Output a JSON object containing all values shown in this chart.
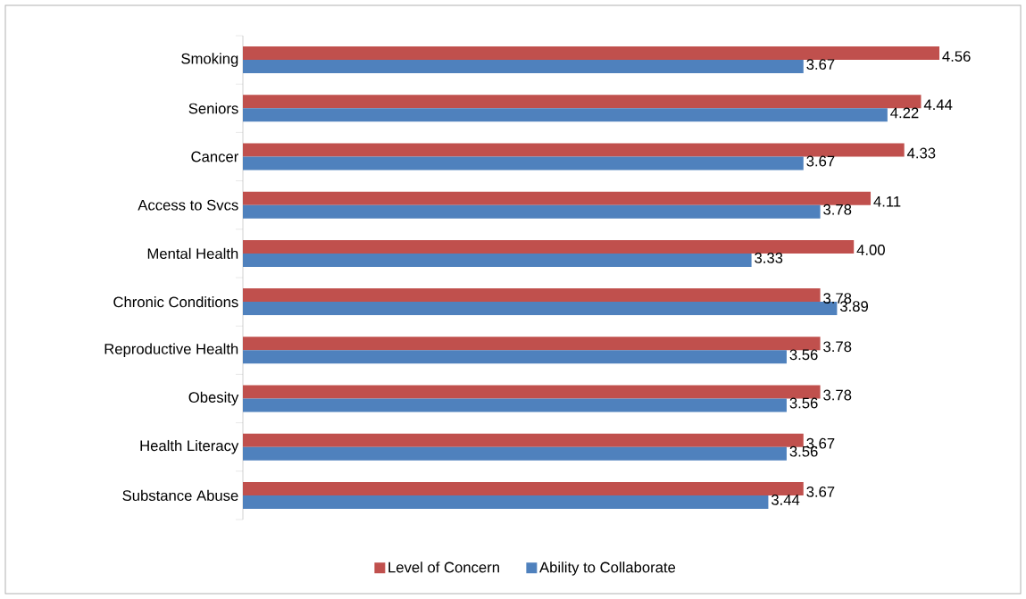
{
  "chart_data": {
    "type": "bar",
    "orientation": "horizontal",
    "categories": [
      "Smoking",
      "Seniors",
      "Cancer",
      "Access to Svcs",
      "Mental Health",
      "Chronic Conditions",
      "Reproductive Health",
      "Obesity",
      "Health Literacy",
      "Substance Abuse"
    ],
    "series": [
      {
        "name": "Level of Concern",
        "color": "#c0504d",
        "values": [
          4.56,
          4.44,
          4.33,
          4.11,
          4.0,
          3.78,
          3.78,
          3.78,
          3.67,
          3.67
        ],
        "value_labels": [
          "4.56",
          "4.44",
          "4.33",
          "4.11",
          "4.00",
          "3.78",
          "3.78",
          "3.78",
          "3.67",
          "3.67"
        ]
      },
      {
        "name": "Ability to Collaborate",
        "color": "#4f81bd",
        "values": [
          3.67,
          4.22,
          3.67,
          3.78,
          3.33,
          3.89,
          3.56,
          3.56,
          3.56,
          3.44
        ],
        "value_labels": [
          "3.67",
          "4.22",
          "3.67",
          "3.78",
          "3.33",
          "3.89",
          "3.56",
          "3.56",
          "3.56",
          "3.44"
        ]
      }
    ],
    "legend": "bottom"
  }
}
